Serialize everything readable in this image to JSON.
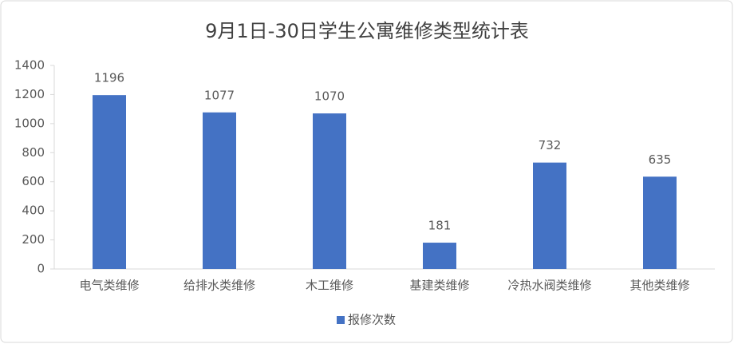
{
  "chart_data": {
    "type": "bar",
    "title": "9月1日-30日学生公寓维修类型统计表",
    "categories": [
      "电气类维修",
      "给排水类维修",
      "木工维修",
      "基建类维修",
      "冷热水阀类维修",
      "其他类维修"
    ],
    "series": [
      {
        "name": "报修次数",
        "color": "#4472c4",
        "values": [
          1196,
          1077,
          1070,
          181,
          732,
          635
        ]
      }
    ],
    "ylim": [
      0,
      1400
    ],
    "yticks": [
      0,
      200,
      400,
      600,
      800,
      1000,
      1200,
      1400
    ],
    "grid": false,
    "legend": "bottom"
  }
}
